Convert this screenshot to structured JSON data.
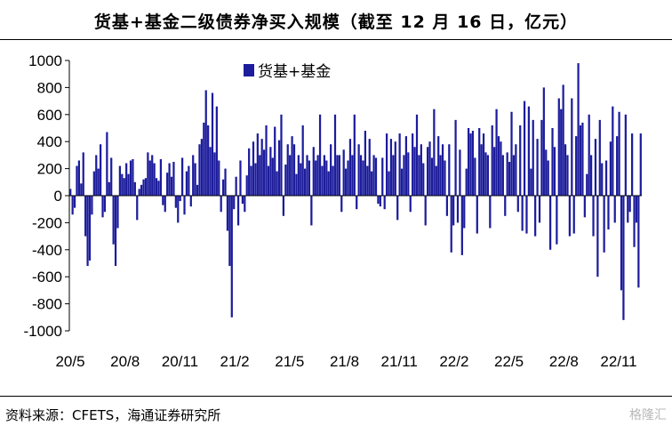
{
  "title": "货基+基金二级债券净买入规模（截至 12 月 16 日，亿元）",
  "source": "资料来源：CFETS，海通证券研究所",
  "watermark": "格隆汇",
  "colors": {
    "series": "#1c1c9c",
    "text": "#000000"
  },
  "chart_data": {
    "type": "bar",
    "title": "货基+基金二级债券净买入规模（截至 12 月 16 日，亿元）",
    "xlabel": "",
    "ylabel": "",
    "ylim": [
      -1000,
      1000
    ],
    "yticks": [
      1000,
      800,
      600,
      400,
      200,
      0,
      -200,
      -400,
      -600,
      -800,
      -1000
    ],
    "xticks": [
      "20/5",
      "20/8",
      "20/11",
      "21/2",
      "21/5",
      "21/8",
      "21/11",
      "22/2",
      "22/5",
      "22/8",
      "22/11"
    ],
    "grid": false,
    "legend": "top-left",
    "series": [
      {
        "name": "货基+基金",
        "values": [
          50,
          -140,
          -90,
          220,
          260,
          90,
          320,
          -300,
          -520,
          -480,
          -140,
          180,
          300,
          200,
          380,
          -160,
          -120,
          470,
          100,
          280,
          -360,
          -520,
          -240,
          220,
          160,
          130,
          240,
          160,
          260,
          270,
          100,
          -180,
          50,
          80,
          120,
          130,
          320,
          260,
          300,
          240,
          130,
          110,
          270,
          -70,
          -120,
          170,
          240,
          140,
          250,
          -90,
          -200,
          -40,
          280,
          -140,
          180,
          220,
          -80,
          300,
          240,
          80,
          380,
          420,
          540,
          780,
          520,
          360,
          760,
          320,
          660,
          260,
          -120,
          120,
          200,
          -260,
          -520,
          -900,
          -100,
          140,
          -220,
          260,
          -60,
          -120,
          150,
          350,
          220,
          400,
          240,
          460,
          300,
          420,
          340,
          520,
          220,
          360,
          280,
          510,
          180,
          410,
          600,
          -150,
          230,
          380,
          300,
          440,
          380,
          160,
          300,
          240,
          520,
          200,
          300,
          260,
          -220,
          360,
          260,
          300,
          600,
          220,
          300,
          260,
          180,
          380,
          220,
          600,
          300,
          300,
          -120,
          340,
          200,
          260,
          420,
          300,
          600,
          -100,
          380,
          300,
          260,
          480,
          220,
          420,
          180,
          300,
          280,
          -60,
          -80,
          280,
          -100,
          460,
          180,
          420,
          300,
          400,
          -180,
          460,
          200,
          300,
          440,
          320,
          -120,
          460,
          360,
          600,
          300,
          380,
          240,
          -220,
          360,
          400,
          280,
          640,
          220,
          440,
          300,
          380,
          260,
          -150,
          380,
          -420,
          -220,
          560,
          -200,
          340,
          -440,
          -240,
          200,
          500,
          460,
          480,
          280,
          -280,
          500,
          380,
          460,
          320,
          300,
          -240,
          520,
          360,
          640,
          440,
          400,
          300,
          -150,
          320,
          250,
          620,
          300,
          380,
          -120,
          520,
          -260,
          700,
          -280,
          660,
          200,
          560,
          -300,
          420,
          -200,
          560,
          800,
          340,
          260,
          -400,
          500,
          360,
          -360,
          720,
          640,
          820,
          380,
          300,
          -300,
          720,
          -280,
          440,
          980,
          520,
          540,
          -160,
          160,
          600,
          300,
          -300,
          420,
          -600,
          560,
          240,
          -420,
          260,
          -250,
          400,
          660,
          -200,
          440,
          620,
          -700,
          -920,
          600,
          -200,
          -120,
          460,
          -380,
          -200,
          -680,
          460
        ]
      }
    ]
  }
}
